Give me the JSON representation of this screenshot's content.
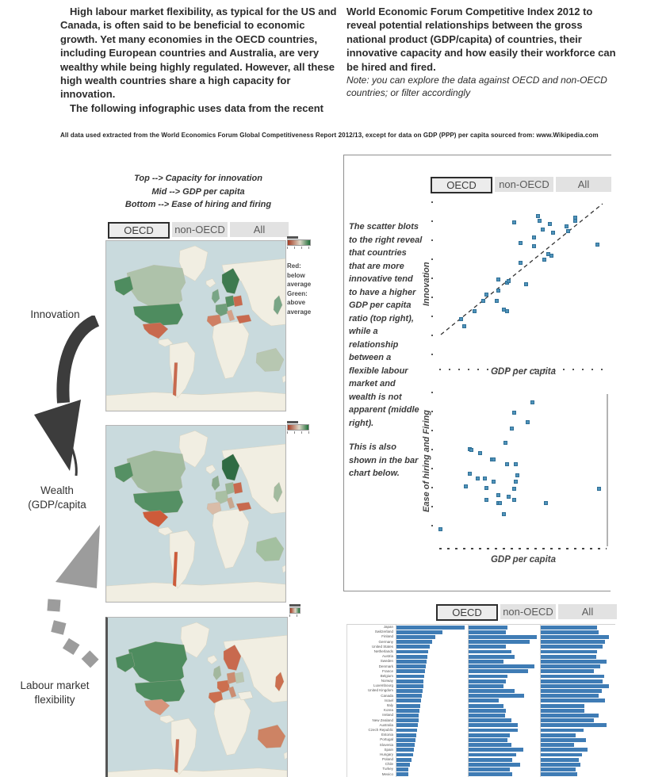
{
  "intro": {
    "left_p1": "High labour market flexibility, as typical for the US and Canada, is often said to be beneficial to economic growth. Yet many economies in the OECD countries, including European countries and Australia, are very wealthy while being highly regulated. However, all these high wealth countries  share a high capacity for innovation.",
    "left_p2": "The following infographic uses data from the recent",
    "right_p": "World Economic Forum Competitive Index 2012 to reveal potential relationships between the gross national product (GDP/capita) of countries, their innovative capacity and how easily their workforce can be hired and fired.",
    "note": "Note: you can explore the data against OECD and non-OECD countries; or filter accordingly",
    "source_line": "All data used extracted from the World Economics Forum Global Competitiveness Report 2012/13, except for data on GDP (PPP) per capita sourced from: www.Wikipedia.com"
  },
  "maps_panel": {
    "key": [
      "Top  --> Capacity for innovation",
      "Mid  --> GDP per capita",
      "Bottom --> Ease of hiring and firing"
    ],
    "tabs": [
      "OECD",
      "non-OECD",
      "All"
    ],
    "selected_tab": "OECD",
    "legend": {
      "red_label": "Red:",
      "red_desc": "below average",
      "green_label": "Green:",
      "green_desc": "above average"
    }
  },
  "flow": {
    "innovation": "Innovation",
    "wealth_line1": "Wealth",
    "wealth_line2": "(GDP/capita",
    "labour_line1": "Labour market",
    "labour_line2": "flexibility"
  },
  "scatter_panel": {
    "tabs": [
      "OECD",
      "non-OECD",
      "All"
    ],
    "selected_tab": "OECD",
    "desc_p1": "The scatter blots to the right reveal that countries that are more innovative tend to have a higher GDP per capita ratio (top right), while a relationship between a flexible labour market and wealth is not apparent (middle right).",
    "desc_p2": "This is also shown in the bar chart below.",
    "scatter1_ylabel": "Innovation",
    "scatter1_xlabel": "GDP per capita",
    "scatter2_ylabel": "Ease of hiring and Firing",
    "scatter2_xlabel": "GDP per capita"
  },
  "bar_panel": {
    "tabs": [
      "OECD",
      "non-OECD",
      "All"
    ],
    "selected_tab": "OECD"
  },
  "colors": {
    "bar_blue": "#3f7cb5",
    "scatter_point_blue": "#4f93ba",
    "map_sea": "#c9dadd",
    "map_land": "#f1eee2",
    "above_average_green": "#3d7a4f",
    "below_average_red": "#c8694e",
    "tab_background": "#e2e2e2",
    "tab_selected_border": "#2d2d2d",
    "divider_grey": "#8f8f8f"
  },
  "chart_data": [
    {
      "type": "heatmap",
      "subtype": "choropleth-world-map",
      "title": "Capacity for innovation (top map)",
      "legend": "Red: below average, Green: above average",
      "highlights": {
        "united_states": "above average (dark green)",
        "canada": "slightly above average (light green)",
        "mexico": "below average (red)",
        "chile": "below average (red)",
        "scandinavia": "above average (dark green)",
        "germany_central_europe": "above average (green)",
        "poland": "below average (red)",
        "spain_portugal": "below average (red)",
        "turkey": "below average (red)",
        "japan": "above average (green)",
        "australia": "near average (pale green)"
      }
    },
    {
      "type": "heatmap",
      "subtype": "choropleth-world-map",
      "title": "GDP per capita (middle map)",
      "legend": "Red: below average, Green: above average",
      "highlights": {
        "united_states": "above average (green)",
        "canada": "above average (light green)",
        "mexico": "below average (red)",
        "chile": "below average (red)",
        "norway": "well above average (dark green)",
        "poland": "below average (red)",
        "turkey": "below average (red)",
        "australia": "above average (light green)"
      }
    },
    {
      "type": "heatmap",
      "subtype": "choropleth-world-map",
      "title": "Ease of hiring and firing (bottom map)",
      "legend": "Red: below average, Green: above average",
      "highlights": {
        "united_states": "above average (green)",
        "canada": "above average (green)",
        "mexico": "below average (light red)",
        "chile": "below average (red)",
        "norway_sweden": "below average (red)",
        "france_spain": "below average (red)",
        "germany": "below average (light red)",
        "japan": "below average (red)",
        "australia": "below average (red)"
      }
    },
    {
      "type": "scatter",
      "title": "Innovation vs GDP per capita (OECD)",
      "xlabel": "GDP per capita",
      "ylabel": "Innovation",
      "trendline": "dashed, positive slope, bottom-left to top-right",
      "points_pct": [
        [
          44,
          13
        ],
        [
          58,
          9
        ],
        [
          59,
          12
        ],
        [
          65,
          14
        ],
        [
          75,
          15
        ],
        [
          80,
          10
        ],
        [
          80,
          12
        ],
        [
          61,
          17
        ],
        [
          67,
          19
        ],
        [
          56,
          22
        ],
        [
          76,
          18
        ],
        [
          48,
          25
        ],
        [
          56,
          27
        ],
        [
          93,
          26
        ],
        [
          62,
          35
        ],
        [
          64,
          32
        ],
        [
          66,
          33
        ],
        [
          48,
          37
        ],
        [
          35,
          47
        ],
        [
          40,
          49
        ],
        [
          41,
          48
        ],
        [
          51,
          50
        ],
        [
          35,
          54
        ],
        [
          28,
          56
        ],
        [
          34,
          60
        ],
        [
          26,
          60
        ],
        [
          38,
          65
        ],
        [
          40,
          66
        ],
        [
          21,
          66
        ],
        [
          13,
          71
        ],
        [
          15,
          75
        ]
      ]
    },
    {
      "type": "scatter",
      "title": "Ease of hiring and Firing vs GDP per capita (OECD)",
      "xlabel": "GDP per capita",
      "ylabel": "Ease of hiring and Firing",
      "trendline": null,
      "points_pct": [
        [
          55,
          7
        ],
        [
          44,
          14
        ],
        [
          52,
          20
        ],
        [
          43,
          24
        ],
        [
          39,
          33
        ],
        [
          18,
          37
        ],
        [
          19,
          38
        ],
        [
          24,
          40
        ],
        [
          31,
          44
        ],
        [
          32,
          44
        ],
        [
          40,
          47
        ],
        [
          45,
          47
        ],
        [
          46,
          54
        ],
        [
          18,
          53
        ],
        [
          23,
          56
        ],
        [
          27,
          56
        ],
        [
          32,
          58
        ],
        [
          16,
          61
        ],
        [
          45,
          58
        ],
        [
          28,
          62
        ],
        [
          44,
          63
        ],
        [
          94,
          63
        ],
        [
          35,
          67
        ],
        [
          41,
          68
        ],
        [
          28,
          70
        ],
        [
          35,
          72
        ],
        [
          36,
          72
        ],
        [
          44,
          70
        ],
        [
          63,
          72
        ],
        [
          38,
          79
        ],
        [
          1,
          89
        ]
      ]
    },
    {
      "type": "bar",
      "orientation": "horizontal",
      "title": "Countries compared across three measures (OECD)",
      "categories": [
        "Japan",
        "Switzerland",
        "Finland",
        "Germany",
        "United States",
        "Netherlands",
        "Austria",
        "Sweden",
        "Denmark",
        "France",
        "Belgium",
        "Norway",
        "Luxembourg",
        "United Kingdom",
        "Canada",
        "Israel",
        "Italy",
        "Korea",
        "Ireland",
        "New Zealand",
        "Australia",
        "Czech Republic",
        "Estonia",
        "Portugal",
        "Slovenia",
        "Spain",
        "Hungary",
        "Poland",
        "Chile",
        "Turkey",
        "Mexico"
      ],
      "series": [
        {
          "name": "Capacity for innovation",
          "values": [
            100,
            67,
            57,
            52,
            49,
            47,
            45,
            44,
            43,
            42,
            41,
            40,
            39,
            38,
            37,
            36,
            35,
            34,
            33,
            32,
            31,
            30,
            29,
            28,
            27,
            26,
            24,
            22,
            20,
            18,
            17
          ]
        },
        {
          "name": "GDP per capita",
          "values": [
            57,
            55,
            100,
            89,
            55,
            63,
            68,
            51,
            97,
            87,
            57,
            55,
            51,
            68,
            81,
            44,
            51,
            55,
            53,
            63,
            72,
            72,
            61,
            57,
            63,
            80,
            70,
            64,
            76,
            61,
            64
          ]
        },
        {
          "name": "Ease of hiring and firing",
          "values": [
            81,
            83,
            98,
            92,
            89,
            81,
            80,
            94,
            85,
            76,
            91,
            89,
            98,
            87,
            83,
            92,
            63,
            63,
            83,
            76,
            94,
            61,
            50,
            65,
            48,
            67,
            59,
            54,
            57,
            50,
            52
          ]
        }
      ],
      "value_unit": "percent of column max (values not labelled in image)"
    }
  ]
}
